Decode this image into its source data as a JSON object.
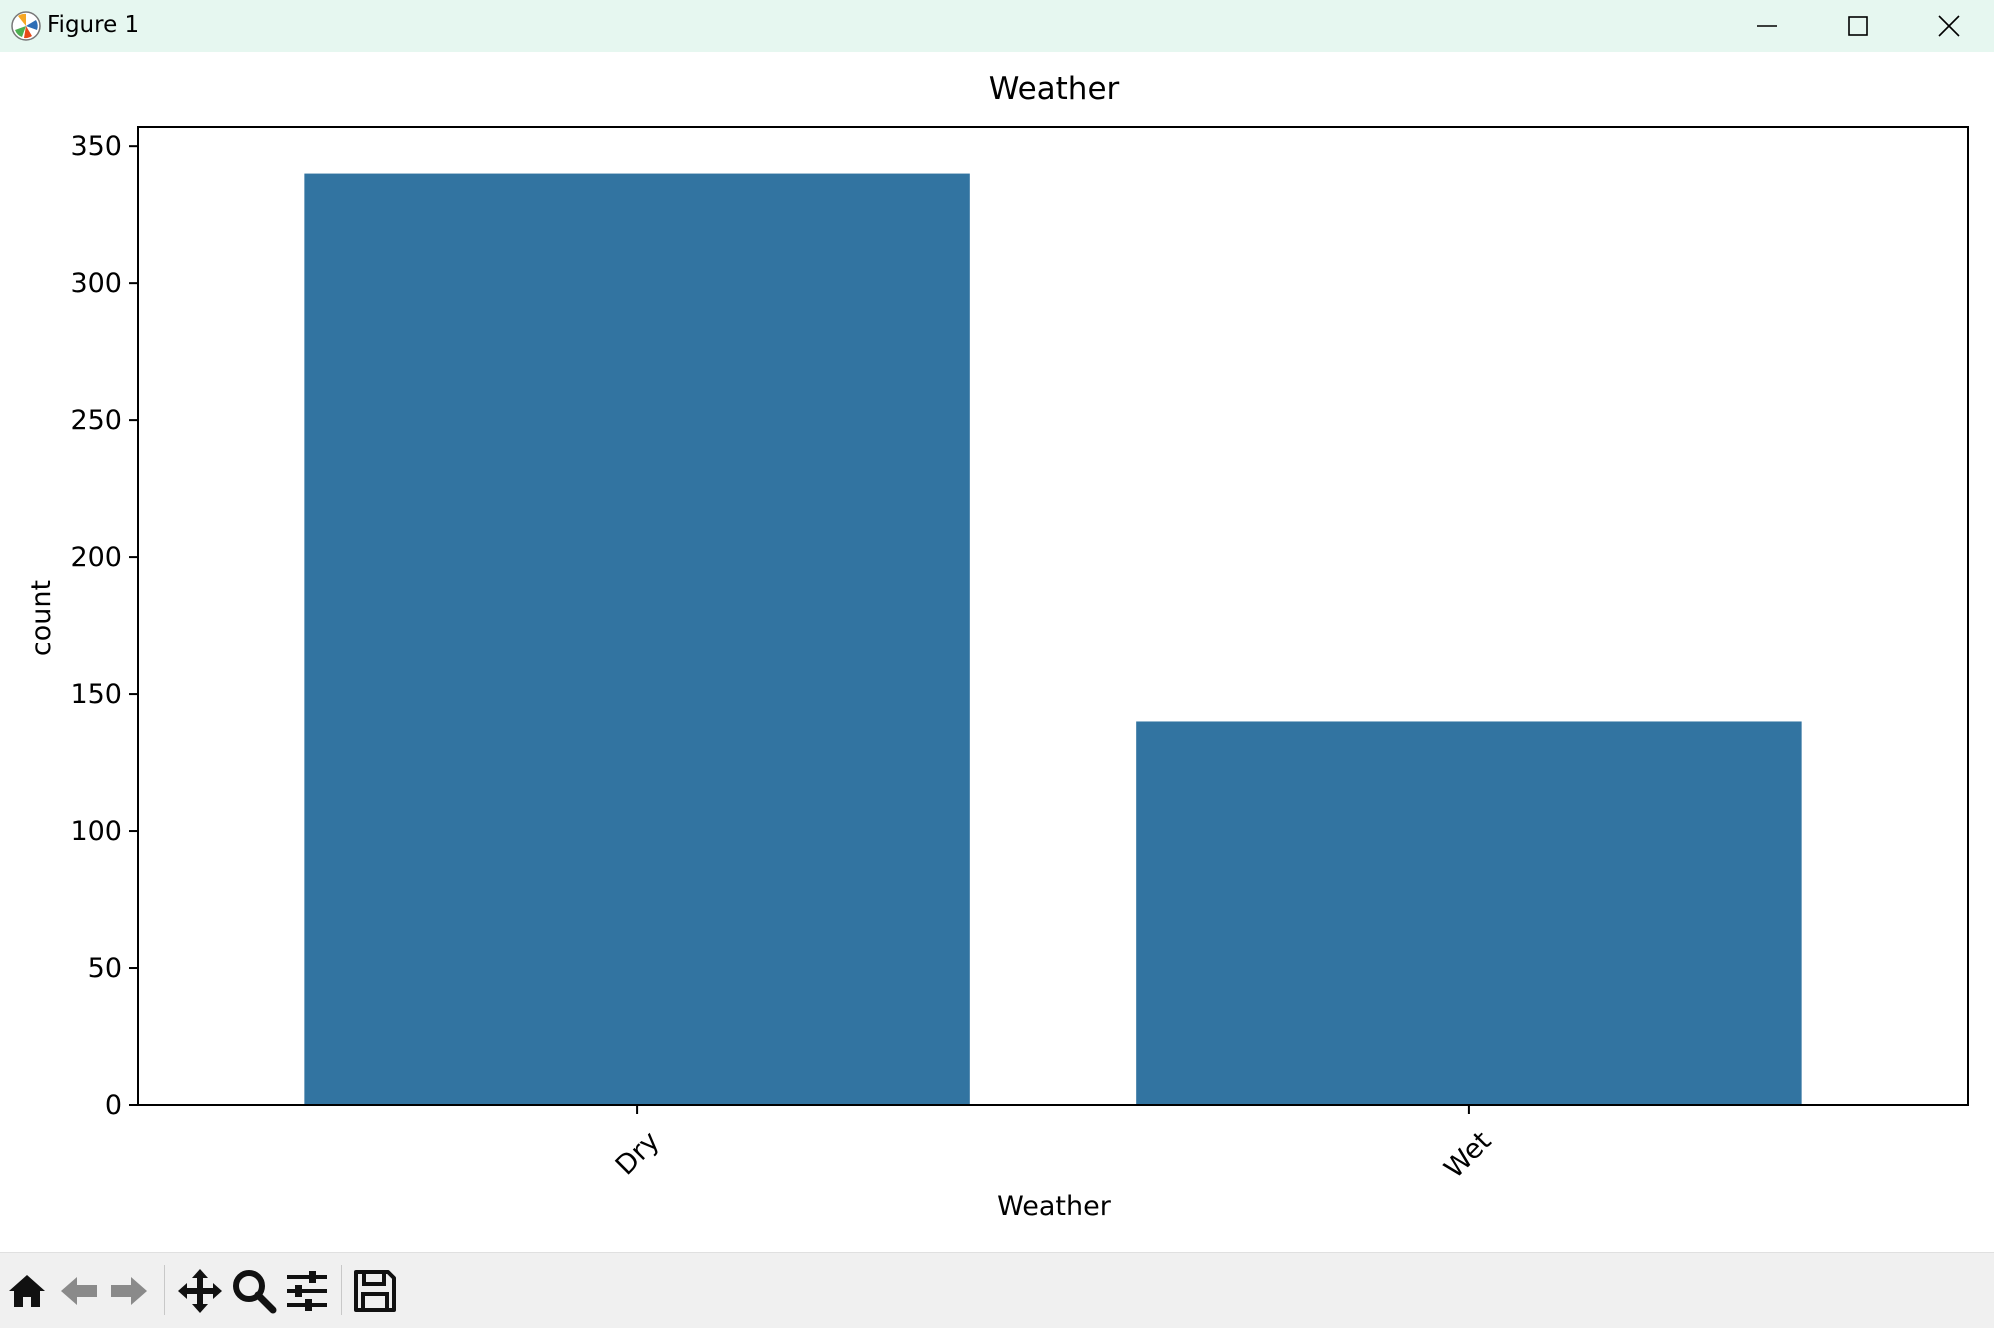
{
  "window": {
    "title": "Figure 1"
  },
  "toolbar": {
    "buttons": [
      "home-icon",
      "back-arrow-icon",
      "forward-arrow-icon",
      "pan-icon",
      "zoom-icon",
      "configure-subplots-icon",
      "save-icon"
    ]
  },
  "colors": {
    "bar": "#3274a1",
    "titlebar": "#e6f7f0",
    "toolbar": "#f0f0f0"
  },
  "chart_data": {
    "type": "bar",
    "title": "Weather",
    "xlabel": "Weather",
    "ylabel": "count",
    "categories": [
      "Dry",
      "Wet"
    ],
    "values": [
      340,
      140
    ],
    "ylim": [
      0,
      357
    ],
    "yticks": [
      0,
      50,
      100,
      150,
      200,
      250,
      300,
      350
    ],
    "yticklabels": [
      "0",
      "50",
      "100",
      "150",
      "200",
      "250",
      "300",
      "350"
    ],
    "grid": false,
    "legend": "none"
  }
}
